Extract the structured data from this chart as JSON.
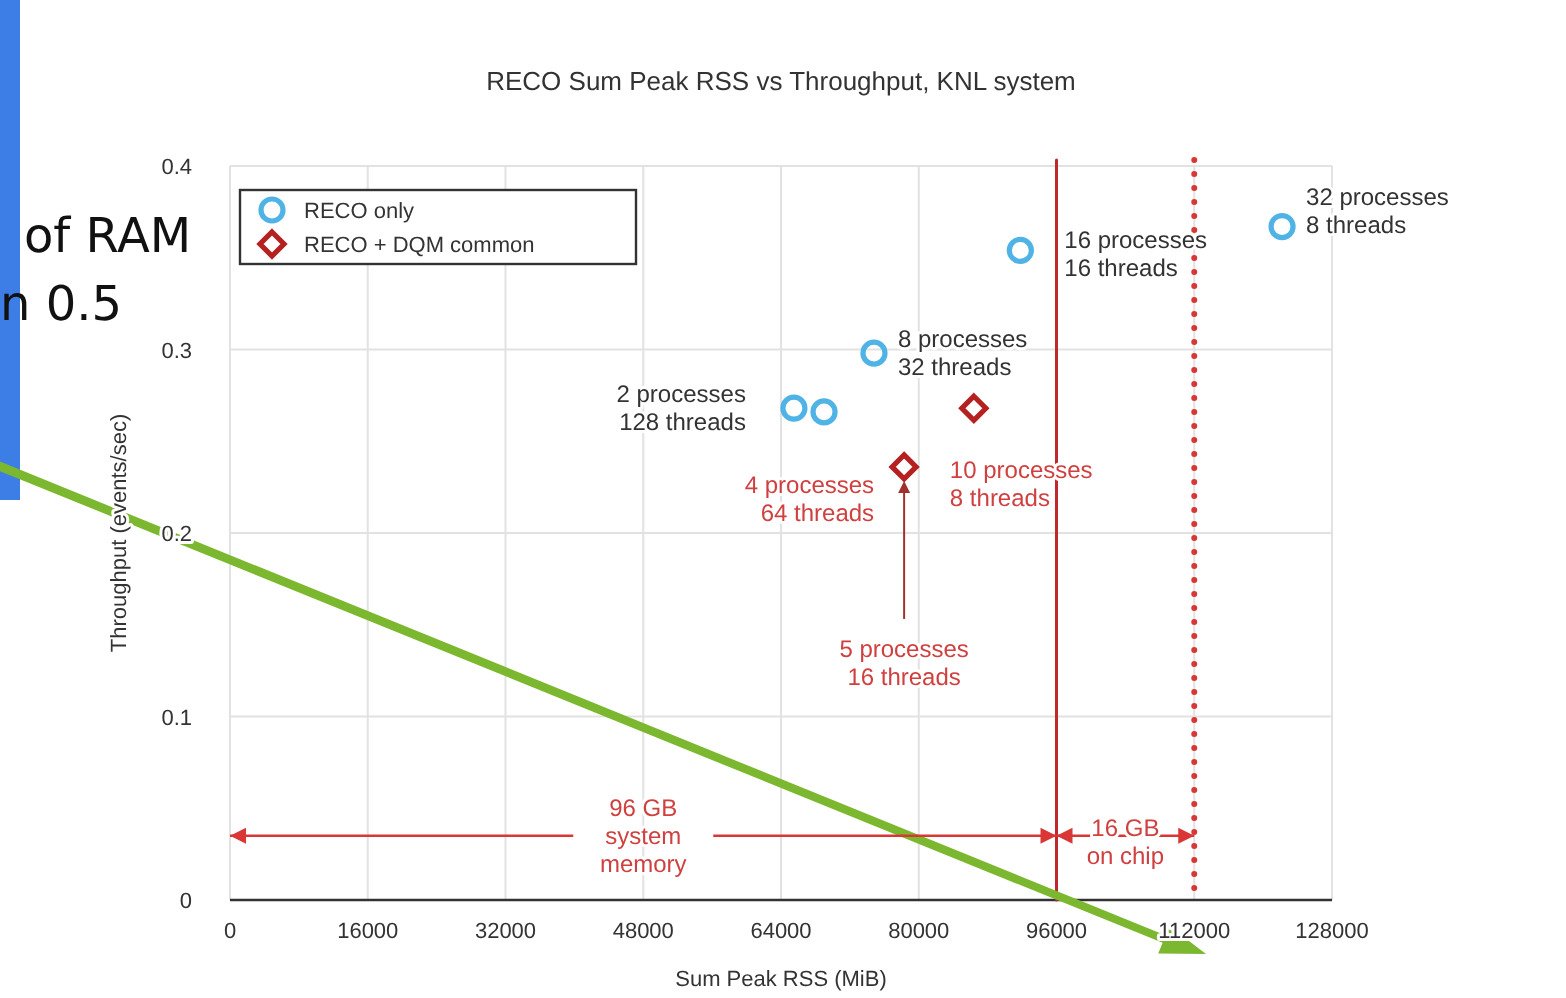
{
  "chart_data": {
    "type": "scatter",
    "title": "RECO Sum Peak RSS vs Throughput,  KNL system",
    "xlabel": "Sum Peak RSS (MiB)",
    "ylabel": "Throughput (events/sec)",
    "xlim": [
      0,
      128000
    ],
    "xticks": [
      0,
      16000,
      32000,
      48000,
      64000,
      80000,
      96000,
      112000,
      128000
    ],
    "ylim": [
      0,
      0.4
    ],
    "yticks": [
      0,
      0.1,
      0.2,
      0.3,
      0.4
    ],
    "grid": true,
    "legend": "top left",
    "series": [
      {
        "name": "RECO only",
        "color": "#4fb3e6",
        "marker": "circle",
        "x": [
          65500,
          69000,
          74800,
          91800,
          122200
        ],
        "values": [
          0.268,
          0.266,
          0.298,
          0.354,
          0.367
        ]
      },
      {
        "name": "RECO + DQM common",
        "color": "#b52020",
        "marker": "diamond",
        "x": [
          78300,
          86400
        ],
        "values": [
          0.236,
          0.268
        ]
      }
    ],
    "ref_lines": [
      {
        "axis": "x",
        "value": 96000,
        "color": "#c0282d",
        "line_style": "solid"
      },
      {
        "axis": "x",
        "value": 112000,
        "color": "#d93636",
        "line_style": "dotted"
      }
    ],
    "annotations": [
      {
        "text": "2 processes\n128 threads",
        "x": 65500,
        "y": 0.268
      },
      {
        "text": "8 processes\n32 threads",
        "x": 74800,
        "y": 0.298
      },
      {
        "text": "16 processes\n16 threads",
        "x": 91800,
        "y": 0.354
      },
      {
        "text": "32 processes\n8 threads",
        "x": 122200,
        "y": 0.367
      },
      {
        "text": "4 processes\n64 threads",
        "x": 78300,
        "y": 0.236
      },
      {
        "text": "10 processes\n8 threads",
        "x": 86400,
        "y": 0.268
      },
      "5 processes\n16 threads",
      {
        "text": "96 GB\nsystem\nmemory",
        "x": 96000,
        "y": 0.035
      },
      {
        "text": "16 GB\non chip",
        "x": 112000,
        "y": 0.035
      },
      "of RAM",
      "n 0.5"
    ]
  }
}
